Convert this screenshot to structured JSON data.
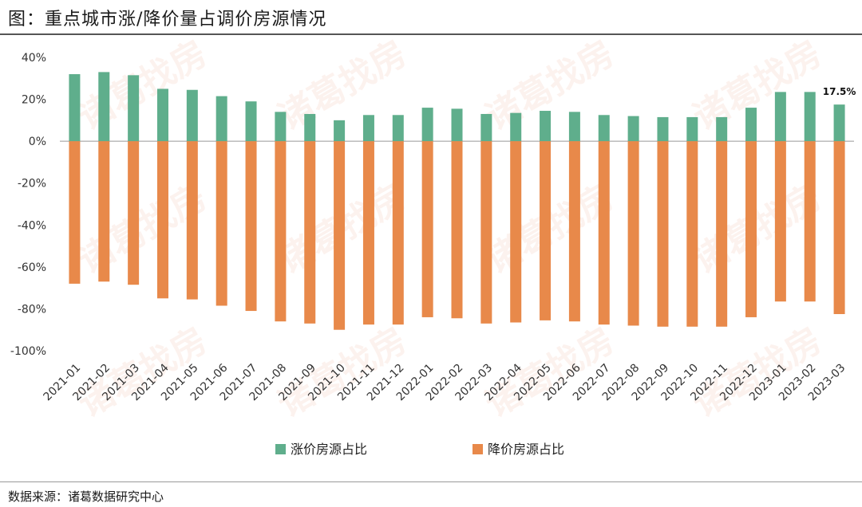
{
  "header": {
    "title": "图：重点城市涨/降价量占调价房源情况"
  },
  "footer": {
    "source": "数据来源：诸葛数据研究中心"
  },
  "watermark": "诸葛找房",
  "colors": {
    "up": "#5fae8c",
    "down": "#e8894a",
    "zero": "#999999"
  },
  "chart_data": {
    "type": "bar",
    "title": "重点城市涨/降价量占调价房源情况",
    "categories": [
      "2021-01",
      "2021-02",
      "2021-03",
      "2021-04",
      "2021-05",
      "2021-06",
      "2021-07",
      "2021-08",
      "2021-09",
      "2021-10",
      "2021-11",
      "2021-12",
      "2022-01",
      "2022-02",
      "2022-03",
      "2022-04",
      "2022-05",
      "2022-06",
      "2022-07",
      "2022-08",
      "2022-09",
      "2022-10",
      "2022-11",
      "2022-12",
      "2023-01",
      "2023-02",
      "2023-03"
    ],
    "series": [
      {
        "name": "涨价房源占比",
        "values": [
          32,
          33,
          31.5,
          25,
          24.5,
          21.5,
          19,
          14,
          13,
          10,
          12.5,
          12.5,
          16,
          15.5,
          13,
          13.5,
          14.5,
          14,
          12.5,
          12,
          11.5,
          11.5,
          11.5,
          16,
          23.5,
          23.5,
          17.5
        ]
      },
      {
        "name": "降价房源占比",
        "values": [
          -68,
          -67,
          -68.5,
          -75,
          -75.5,
          -78.5,
          -81,
          -86,
          -87,
          -90,
          -87.5,
          -87.5,
          -84,
          -84.5,
          -87,
          -86.5,
          -85.5,
          -86,
          -87.5,
          -88,
          -88.5,
          -88.5,
          -88.5,
          -84,
          -76.5,
          -76.5,
          -82.5
        ]
      }
    ],
    "ylim": [
      -100,
      40
    ],
    "yticks": [
      40,
      20,
      0,
      -20,
      -40,
      -60,
      -80,
      -100
    ],
    "ytick_labels": [
      "40%",
      "20%",
      "0%",
      "-20%",
      "-40%",
      "-60%",
      "-80%",
      "-100%"
    ],
    "annotation": {
      "category": "2023-03",
      "text": "17.5%"
    },
    "legend": [
      "涨价房源占比",
      "降价房源占比"
    ],
    "legend_position": "bottom-center",
    "grid": false
  }
}
